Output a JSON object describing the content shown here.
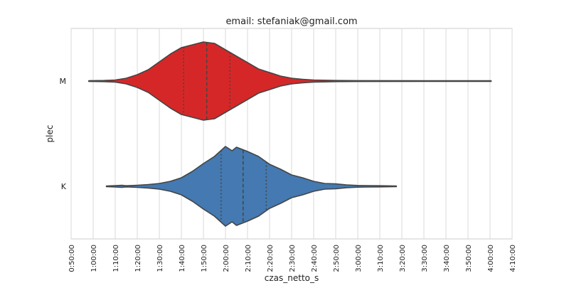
{
  "chart_data": {
    "type": "violin",
    "orientation": "horizontal",
    "title": "email: stefaniak@gmail.com",
    "xlabel": "czas_netto_s",
    "ylabel": "plec",
    "x_unit": "H:MM:SS duration",
    "xlim": [
      "0:50:00",
      "4:10:00"
    ],
    "x_ticks": [
      "0:50:00",
      "1:00:00",
      "1:10:00",
      "1:20:00",
      "1:30:00",
      "1:40:00",
      "1:50:00",
      "2:00:00",
      "2:10:00",
      "2:20:00",
      "2:30:00",
      "2:40:00",
      "2:50:00",
      "3:00:00",
      "3:10:00",
      "3:20:00",
      "3:30:00",
      "3:40:00",
      "3:50:00",
      "4:00:00",
      "4:10:00"
    ],
    "grid": true,
    "categories": [
      "M",
      "K"
    ],
    "series": [
      {
        "category": "M",
        "color": "#d62728",
        "min": "0:58:00",
        "q1": "1:41:00",
        "median": "1:51:30",
        "q3": "2:02:00",
        "max": "4:00:30",
        "density": [
          [
            "0:58:00",
            0.5
          ],
          [
            "1:00:00",
            0.6
          ],
          [
            "1:05:00",
            0.8
          ],
          [
            "1:10:00",
            1.5
          ],
          [
            "1:15:00",
            4
          ],
          [
            "1:20:00",
            9
          ],
          [
            "1:25:00",
            16
          ],
          [
            "1:30:00",
            27
          ],
          [
            "1:35:00",
            38
          ],
          [
            "1:40:00",
            47
          ],
          [
            "1:45:00",
            51
          ],
          [
            "1:50:00",
            55
          ],
          [
            "1:55:00",
            53
          ],
          [
            "2:00:00",
            44
          ],
          [
            "2:05:00",
            35
          ],
          [
            "2:10:00",
            26
          ],
          [
            "2:15:00",
            17
          ],
          [
            "2:20:00",
            12
          ],
          [
            "2:25:00",
            7
          ],
          [
            "2:30:00",
            4
          ],
          [
            "2:35:00",
            2.5
          ],
          [
            "2:40:00",
            1.5
          ],
          [
            "2:50:00",
            0.8
          ],
          [
            "3:00:00",
            0.6
          ],
          [
            "3:30:00",
            0.5
          ],
          [
            "4:00:30",
            0.5
          ]
        ]
      },
      {
        "category": "K",
        "color": "#4479b1",
        "min": "1:06:00",
        "q1": "1:58:00",
        "median": "2:08:00",
        "q3": "2:18:30",
        "max": "3:17:30",
        "density": [
          [
            "1:06:00",
            0.5
          ],
          [
            "1:10:00",
            1
          ],
          [
            "1:13:00",
            1.5
          ],
          [
            "1:15:00",
            0.8
          ],
          [
            "1:20:00",
            1.5
          ],
          [
            "1:25:00",
            2.5
          ],
          [
            "1:30:00",
            4
          ],
          [
            "1:35:00",
            7
          ],
          [
            "1:40:00",
            12
          ],
          [
            "1:45:00",
            21
          ],
          [
            "1:50:00",
            32
          ],
          [
            "1:55:00",
            42
          ],
          [
            "2:00:00",
            56
          ],
          [
            "2:03:00",
            50
          ],
          [
            "2:05:00",
            55
          ],
          [
            "2:10:00",
            49
          ],
          [
            "2:15:00",
            42
          ],
          [
            "2:20:00",
            31
          ],
          [
            "2:25:00",
            24
          ],
          [
            "2:30:00",
            16
          ],
          [
            "2:35:00",
            12
          ],
          [
            "2:40:00",
            7
          ],
          [
            "2:45:00",
            4
          ],
          [
            "2:50:00",
            3.5
          ],
          [
            "2:55:00",
            2
          ],
          [
            "3:00:00",
            1.2
          ],
          [
            "3:05:00",
            1
          ],
          [
            "3:10:00",
            0.8
          ],
          [
            "3:17:30",
            0.5
          ]
        ]
      }
    ]
  }
}
